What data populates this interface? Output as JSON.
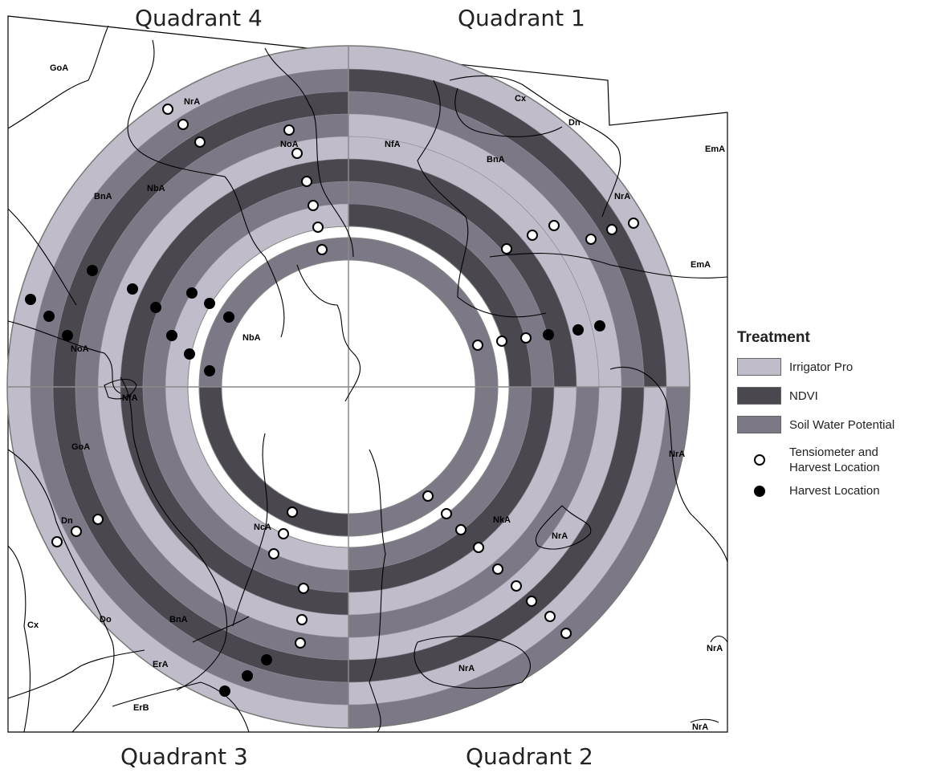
{
  "map": {
    "quadrants": [
      "Quadrant 1",
      "Quadrant 2",
      "Quadrant 3",
      "Quadrant 4"
    ],
    "ring_treatments_outer": [
      "Irrigator Pro",
      "Soil Water Potential",
      "NDVI",
      "Soil Water Potential",
      "NDVI",
      "Irrigator Pro",
      "Irrigator Pro",
      "Soil Water Potential",
      "NDVI",
      "Irrigator Pro"
    ],
    "soil_labels": [
      "GoA",
      "NrA",
      "NoA",
      "BnA",
      "NbA",
      "NfA",
      "Cx",
      "Dn",
      "BnA",
      "EmA",
      "NrA",
      "EmA",
      "NoA",
      "NbA",
      "NfA",
      "GoA",
      "Dn",
      "Cx",
      "Do",
      "BnA",
      "ErA",
      "ErB",
      "NcA",
      "NkA",
      "NrA",
      "NrA",
      "NrA",
      "NrA",
      "NrA"
    ]
  },
  "legend": {
    "title": "Treatment",
    "items": [
      {
        "label": "Irrigator Pro",
        "color": "#c0bcc9"
      },
      {
        "label": "NDVI",
        "color": "#4a474f"
      },
      {
        "label": "Soil Water Potential",
        "color": "#7d7885"
      }
    ],
    "points": [
      {
        "label_line1": "Tensiometer and",
        "label_line2": "Harvest Location",
        "symbol": "open-circle"
      },
      {
        "label": "Harvest Location",
        "symbol": "filled-circle"
      }
    ]
  },
  "colors": {
    "irrigator_pro": "#c0bcc9",
    "ndvi": "#4a474f",
    "soil_water_potential": "#7d7885"
  }
}
